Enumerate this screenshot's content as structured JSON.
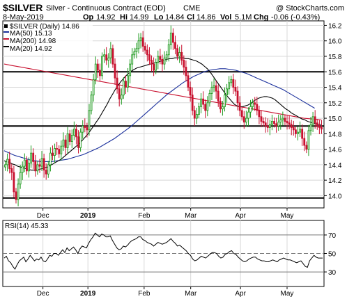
{
  "header": {
    "symbol": "$SILVER",
    "description": "Silver - Continuous Contract (EOD)",
    "exchange": "CME",
    "watermark": "@ StockCharts.com",
    "date": "8-May-2019",
    "op_label": "Op",
    "op": "14.92",
    "hi_label": "Hi",
    "hi": "14.99",
    "lo_label": "Lo",
    "lo": "14.84",
    "cl_label": "Cl",
    "cl": "14.86",
    "vol_label": "Vol",
    "vol": "5.1M",
    "chg_label": "Chg",
    "chg": "-0.06 (-0.43%)"
  },
  "legend": {
    "main": "$SILVER (Daily) 14.86",
    "ma50": "MA(50) 15.13",
    "ma200": "MA(200) 14.98",
    "ma20": "MA(20) 14.92"
  },
  "rsi_label": "RSI(14) 45.33",
  "x_labels": [
    "Dec",
    "2019",
    "Feb",
    "Mar",
    "Apr",
    "May"
  ],
  "colors": {
    "up": "#1f9a1f",
    "down": "#c8102e",
    "ma50": "#1a2f9c",
    "ma200": "#c8102e",
    "ma20": "#000000"
  },
  "chart_data": [
    {
      "type": "candlestick",
      "title": "$SILVER (Daily) 14.86",
      "y_ticks": [
        14.0,
        14.2,
        14.4,
        14.6,
        14.8,
        15.0,
        15.2,
        15.4,
        15.6,
        15.8,
        16.0,
        16.2
      ],
      "ylim": [
        13.86,
        16.24
      ],
      "x_start": "2018-11-01",
      "x_end": "2019-05-08",
      "x_ticks": [
        "Dec",
        "2019",
        "Feb",
        "Mar",
        "Apr",
        "May"
      ],
      "horizontal_lines": [
        13.97,
        14.9,
        15.6
      ],
      "close": [
        14.4,
        14.47,
        14.35,
        14.3,
        14.05,
        13.95,
        14.15,
        14.3,
        14.38,
        14.46,
        14.32,
        14.42,
        14.55,
        14.44,
        14.32,
        14.4,
        14.38,
        14.48,
        14.33,
        14.28,
        14.4,
        14.55,
        14.52,
        14.61,
        14.6,
        14.54,
        14.64,
        14.72,
        14.62,
        14.8,
        14.7,
        14.78,
        14.86,
        14.76,
        14.62,
        14.82,
        14.9,
        14.88,
        14.85,
        15.1,
        15.3,
        15.5,
        15.7,
        15.62,
        15.55,
        15.8,
        15.82,
        15.75,
        15.78,
        15.9,
        15.7,
        15.52,
        15.38,
        15.25,
        15.3,
        15.48,
        15.4,
        15.55,
        15.7,
        15.82,
        15.86,
        15.9,
        16.0,
        16.04,
        15.93,
        15.88,
        15.82,
        15.75,
        15.7,
        15.62,
        15.72,
        15.8,
        15.76,
        15.7,
        15.78,
        15.82,
        15.95,
        16.1,
        15.98,
        15.9,
        15.8,
        15.85,
        15.75,
        15.66,
        15.55,
        15.4,
        15.3,
        15.1,
        15.0,
        15.05,
        15.15,
        15.25,
        15.18,
        15.1,
        15.2,
        15.32,
        15.4,
        15.42,
        15.35,
        15.22,
        15.12,
        15.15,
        15.3,
        15.38,
        15.46,
        15.5,
        15.4,
        15.35,
        15.2,
        15.1,
        15.02,
        14.95,
        15.0,
        15.08,
        15.15,
        15.2,
        15.18,
        15.1,
        15.02,
        14.96,
        14.94,
        14.9,
        14.88,
        14.92,
        14.96,
        14.93,
        14.9,
        14.95,
        14.98,
        15.0,
        14.96,
        14.94,
        14.92,
        14.88,
        14.85,
        14.8,
        14.82,
        14.86,
        14.74,
        14.65,
        14.6,
        14.84,
        14.92,
        15.02,
        14.94,
        14.9,
        14.88,
        14.86
      ],
      "ma20": [
        14.45,
        14.44,
        14.43,
        14.41,
        14.4,
        14.38,
        14.37,
        14.36,
        14.35,
        14.34,
        14.33,
        14.33,
        14.33,
        14.34,
        14.35,
        14.36,
        14.37,
        14.39,
        14.41,
        14.43,
        14.45,
        14.47,
        14.5,
        14.53,
        14.56,
        14.59,
        14.62,
        14.65,
        14.68,
        14.72,
        14.76,
        14.8,
        14.85,
        14.9,
        14.95,
        15.0,
        15.06,
        15.12,
        15.18,
        15.25,
        15.31,
        15.37,
        15.42,
        15.47,
        15.51,
        15.55,
        15.58,
        15.61,
        15.63,
        15.65,
        15.66,
        15.67,
        15.68,
        15.69,
        15.7,
        15.71,
        15.72,
        15.73,
        15.74,
        15.75,
        15.76,
        15.77,
        15.77,
        15.78,
        15.78,
        15.78,
        15.78,
        15.77,
        15.77,
        15.76,
        15.75,
        15.74,
        15.72,
        15.7,
        15.67,
        15.64,
        15.6,
        15.55,
        15.5,
        15.45,
        15.4,
        15.35,
        15.3,
        15.26,
        15.22,
        15.18,
        15.16,
        15.15,
        15.15,
        15.16,
        15.17,
        15.19,
        15.22,
        15.24,
        15.26,
        15.27,
        15.28,
        15.28,
        15.27,
        15.26,
        15.24,
        15.21,
        15.18,
        15.15,
        15.12,
        15.1,
        15.07,
        15.05,
        15.03,
        15.01,
        14.99,
        14.98,
        14.96,
        14.95,
        14.94,
        14.93,
        14.92,
        14.92
      ],
      "ma50": [
        14.58,
        14.55,
        14.52,
        14.5,
        14.48,
        14.46,
        14.45,
        14.44,
        14.44,
        14.44,
        14.45,
        14.46,
        14.47,
        14.49,
        14.51,
        14.53,
        14.56,
        14.59,
        14.62,
        14.66,
        14.7,
        14.74,
        14.79,
        14.84,
        14.89,
        14.95,
        15.01,
        15.07,
        15.13,
        15.19,
        15.25,
        15.31,
        15.36,
        15.41,
        15.46,
        15.5,
        15.54,
        15.57,
        15.6,
        15.62,
        15.63,
        15.64,
        15.64,
        15.63,
        15.62,
        15.6,
        15.58,
        15.55,
        15.52,
        15.49,
        15.46,
        15.43,
        15.4,
        15.37,
        15.33,
        15.29,
        15.25,
        15.21,
        15.17,
        15.13
      ],
      "ma200": [
        15.7,
        15.68,
        15.66,
        15.64,
        15.62,
        15.6,
        15.58,
        15.56,
        15.54,
        15.52,
        15.5,
        15.48,
        15.46,
        15.44,
        15.42,
        15.4,
        15.38,
        15.36,
        15.34,
        15.32,
        15.3,
        15.28,
        15.26,
        15.24,
        15.22,
        15.2,
        15.18,
        15.16,
        15.14,
        15.12,
        15.1,
        15.08,
        15.06,
        15.04,
        15.02,
        15.0,
        14.99,
        14.98
      ]
    },
    {
      "type": "line",
      "title": "RSI(14) 45.33",
      "y_ticks": [
        30,
        50,
        70
      ],
      "ylim": [
        15,
        85
      ],
      "reference_lines": [
        30,
        50,
        70
      ],
      "x_ticks": [
        "Dec",
        "2019",
        "Feb",
        "Mar",
        "Apr",
        "May"
      ],
      "values": [
        45,
        47,
        42,
        40,
        36,
        33,
        38,
        42,
        44,
        46,
        41,
        44,
        48,
        45,
        42,
        44,
        43,
        46,
        42,
        41,
        44,
        48,
        47,
        50,
        50,
        48,
        51,
        54,
        51,
        56,
        53,
        55,
        57,
        54,
        50,
        55,
        58,
        57,
        56,
        61,
        65,
        68,
        72,
        70,
        68,
        71,
        70,
        68,
        68,
        69,
        64,
        60,
        56,
        54,
        55,
        58,
        57,
        59,
        62,
        64,
        65,
        66,
        68,
        68,
        65,
        64,
        62,
        61,
        60,
        58,
        60,
        62,
        61,
        60,
        61,
        62,
        64,
        66,
        63,
        61,
        58,
        59,
        57,
        55,
        53,
        50,
        48,
        44,
        42,
        43,
        45,
        47,
        46,
        45,
        47,
        49,
        51,
        51,
        50,
        47,
        45,
        46,
        49,
        50,
        52,
        53,
        50,
        49,
        46,
        44,
        42,
        41,
        42,
        44,
        45,
        46,
        46,
        44,
        43,
        42,
        42,
        41,
        41,
        42,
        43,
        42,
        41,
        43,
        44,
        45,
        44,
        43,
        43,
        42,
        41,
        40,
        41,
        42,
        39,
        36,
        35,
        42,
        45,
        48,
        46,
        45,
        45,
        45
      ]
    }
  ]
}
